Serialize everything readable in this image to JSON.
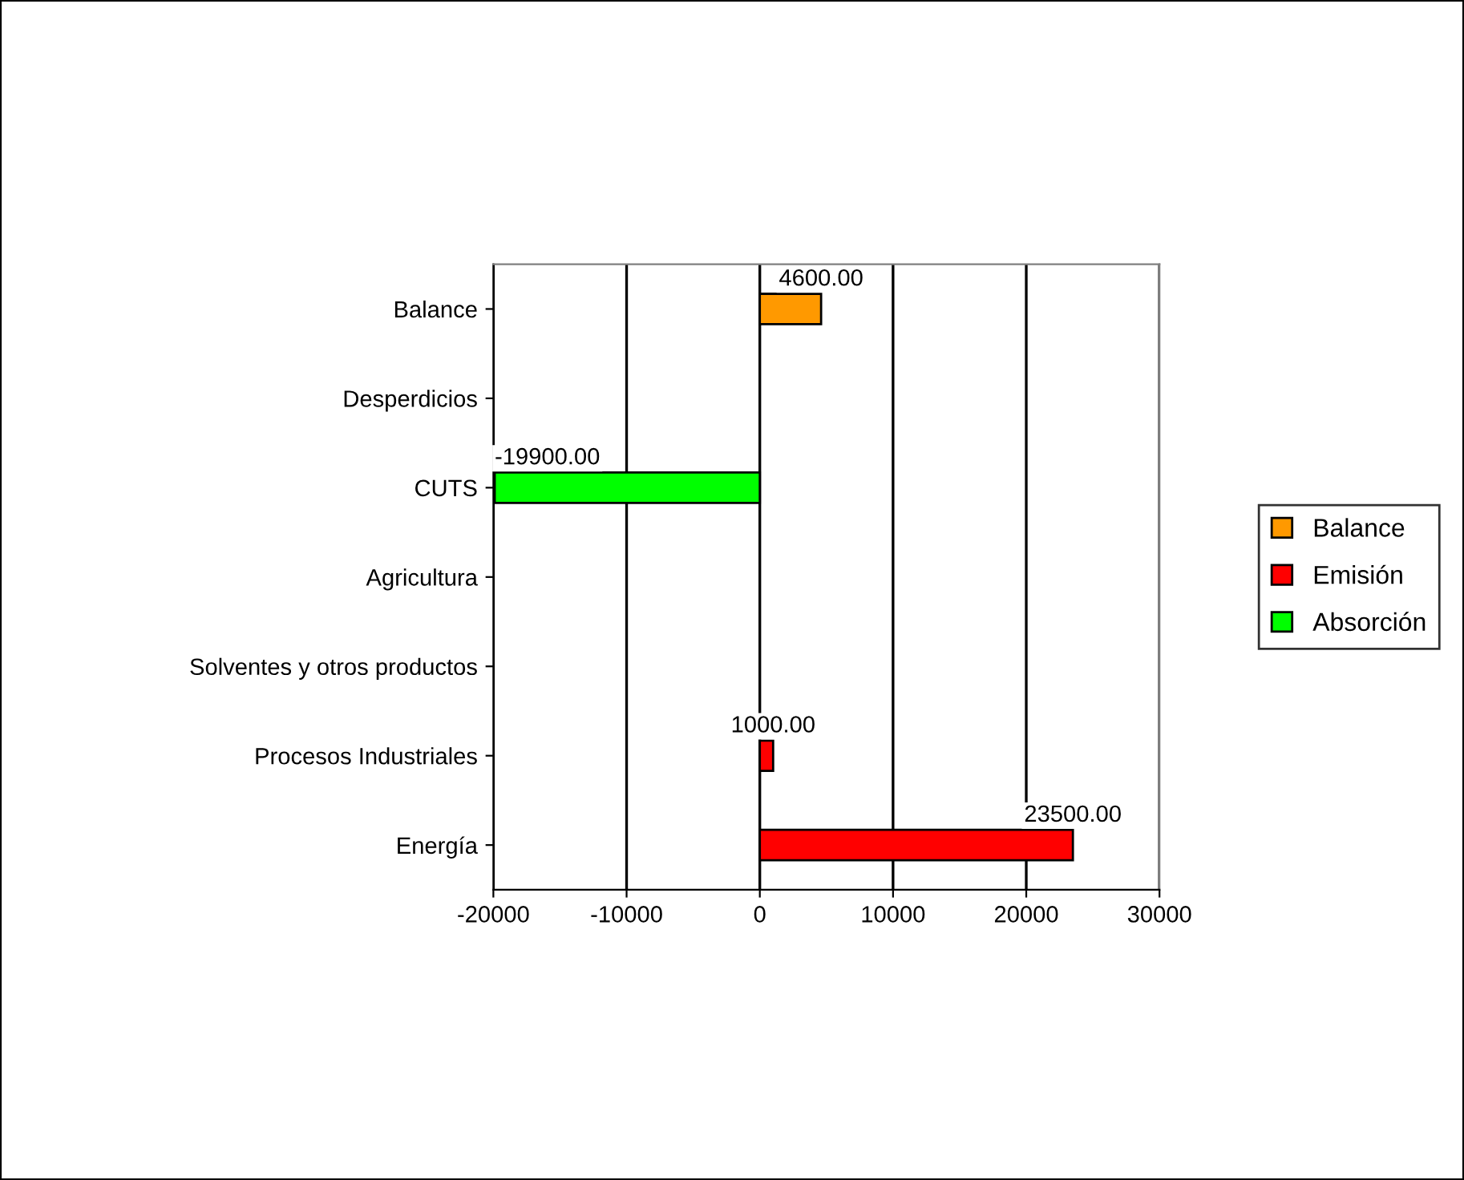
{
  "chart_data": {
    "type": "bar",
    "orientation": "horizontal",
    "stacked": true,
    "categories": [
      "Balance",
      "Desperdicios",
      "CUTS",
      "Agricultura",
      "Solventes y otros productos",
      "Procesos Industriales",
      "Energía"
    ],
    "series": [
      {
        "name": "Balance",
        "color": "#ff9900",
        "values": [
          4600,
          null,
          null,
          null,
          null,
          null,
          null
        ],
        "value_labels": [
          "4600.00",
          null,
          null,
          null,
          null,
          null,
          null
        ]
      },
      {
        "name": "Emisión",
        "color": "#ff0000",
        "values": [
          null,
          null,
          null,
          null,
          null,
          1000,
          23500
        ],
        "value_labels": [
          null,
          null,
          null,
          null,
          null,
          "1000.00",
          "23500.00"
        ]
      },
      {
        "name": "Absorción",
        "color": "#00ff00",
        "values": [
          null,
          null,
          -19900,
          null,
          null,
          null,
          null
        ],
        "value_labels": [
          null,
          null,
          "-19900.00",
          null,
          null,
          null,
          null
        ]
      }
    ],
    "xlim": [
      -20000,
      30000
    ],
    "xticks": [
      -20000,
      -10000,
      0,
      10000,
      20000,
      30000
    ],
    "grid": "x",
    "legend": "right"
  }
}
